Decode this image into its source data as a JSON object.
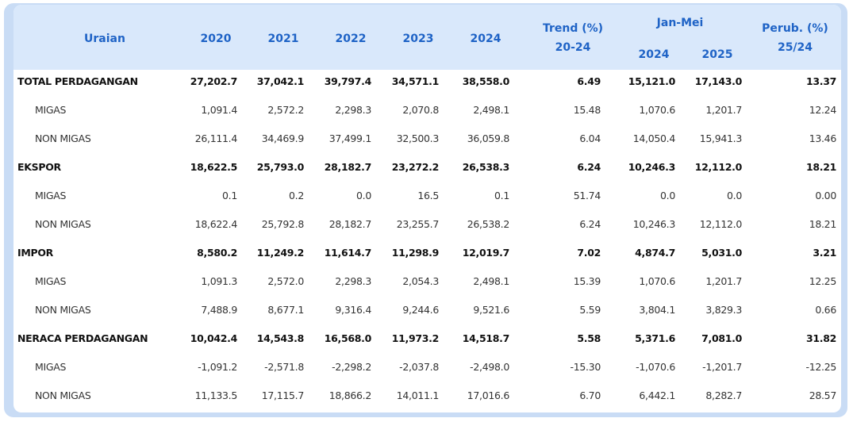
{
  "header": {
    "uraian": "Uraian",
    "y2020": "2020",
    "y2021": "2021",
    "y2022": "2022",
    "y2023": "2023",
    "y2024": "2024",
    "trend_line1": "Trend (%)",
    "trend_line2": "20-24",
    "janmei": "Jan-Mei",
    "jm2024": "2024",
    "jm2025": "2025",
    "perub_line1": "Perub. (%)",
    "perub_line2": "25/24"
  },
  "rows": [
    {
      "label": "TOTAL PERDAGANGAN",
      "bold": true,
      "v2020": "27,202.7",
      "v2021": "37,042.1",
      "v2022": "39,797.4",
      "v2023": "34,571.1",
      "v2024": "38,558.0",
      "trend": "6.49",
      "jm2024": "15,121.0",
      "jm2025": "17,143.0",
      "perub": "13.37"
    },
    {
      "label": "MIGAS",
      "bold": false,
      "v2020": "1,091.4",
      "v2021": "2,572.2",
      "v2022": "2,298.3",
      "v2023": "2,070.8",
      "v2024": "2,498.1",
      "trend": "15.48",
      "jm2024": "1,070.6",
      "jm2025": "1,201.7",
      "perub": "12.24"
    },
    {
      "label": "NON MIGAS",
      "bold": false,
      "v2020": "26,111.4",
      "v2021": "34,469.9",
      "v2022": "37,499.1",
      "v2023": "32,500.3",
      "v2024": "36,059.8",
      "trend": "6.04",
      "jm2024": "14,050.4",
      "jm2025": "15,941.3",
      "perub": "13.46"
    },
    {
      "label": "EKSPOR",
      "bold": true,
      "v2020": "18,622.5",
      "v2021": "25,793.0",
      "v2022": "28,182.7",
      "v2023": "23,272.2",
      "v2024": "26,538.3",
      "trend": "6.24",
      "jm2024": "10,246.3",
      "jm2025": "12,112.0",
      "perub": "18.21"
    },
    {
      "label": "MIGAS",
      "bold": false,
      "v2020": "0.1",
      "v2021": "0.2",
      "v2022": "0.0",
      "v2023": "16.5",
      "v2024": "0.1",
      "trend": "51.74",
      "jm2024": "0.0",
      "jm2025": "0.0",
      "perub": "0.00"
    },
    {
      "label": "NON MIGAS",
      "bold": false,
      "v2020": "18,622.4",
      "v2021": "25,792.8",
      "v2022": "28,182.7",
      "v2023": "23,255.7",
      "v2024": "26,538.2",
      "trend": "6.24",
      "jm2024": "10,246.3",
      "jm2025": "12,112.0",
      "perub": "18.21"
    },
    {
      "label": "IMPOR",
      "bold": true,
      "v2020": "8,580.2",
      "v2021": "11,249.2",
      "v2022": "11,614.7",
      "v2023": "11,298.9",
      "v2024": "12,019.7",
      "trend": "7.02",
      "jm2024": "4,874.7",
      "jm2025": "5,031.0",
      "perub": "3.21"
    },
    {
      "label": "MIGAS",
      "bold": false,
      "v2020": "1,091.3",
      "v2021": "2,572.0",
      "v2022": "2,298.3",
      "v2023": "2,054.3",
      "v2024": "2,498.1",
      "trend": "15.39",
      "jm2024": "1,070.6",
      "jm2025": "1,201.7",
      "perub": "12.25"
    },
    {
      "label": "NON MIGAS",
      "bold": false,
      "v2020": "7,488.9",
      "v2021": "8,677.1",
      "v2022": "9,316.4",
      "v2023": "9,244.6",
      "v2024": "9,521.6",
      "trend": "5.59",
      "jm2024": "3,804.1",
      "jm2025": "3,829.3",
      "perub": "0.66"
    },
    {
      "label": "NERACA PERDAGANGAN",
      "bold": true,
      "v2020": "10,042.4",
      "v2021": "14,543.8",
      "v2022": "16,568.0",
      "v2023": "11,973.2",
      "v2024": "14,518.7",
      "trend": "5.58",
      "jm2024": "5,371.6",
      "jm2025": "7,081.0",
      "perub": "31.82"
    },
    {
      "label": "MIGAS",
      "bold": false,
      "v2020": "-1,091.2",
      "v2021": "-2,571.8",
      "v2022": "-2,298.2",
      "v2023": "-2,037.8",
      "v2024": "-2,498.0",
      "trend": "-15.30",
      "jm2024": "-1,070.6",
      "jm2025": "-1,201.7",
      "perub": "-12.25"
    },
    {
      "label": "NON MIGAS",
      "bold": false,
      "v2020": "11,133.5",
      "v2021": "17,115.7",
      "v2022": "18,866.2",
      "v2023": "14,011.1",
      "v2024": "17,016.6",
      "trend": "6.70",
      "jm2024": "6,442.1",
      "jm2025": "8,282.7",
      "perub": "28.57"
    }
  ],
  "colors": {
    "header_bg": "#d9e8fb",
    "header_text": "#1f63c6",
    "frame": "#c9dcf5"
  }
}
